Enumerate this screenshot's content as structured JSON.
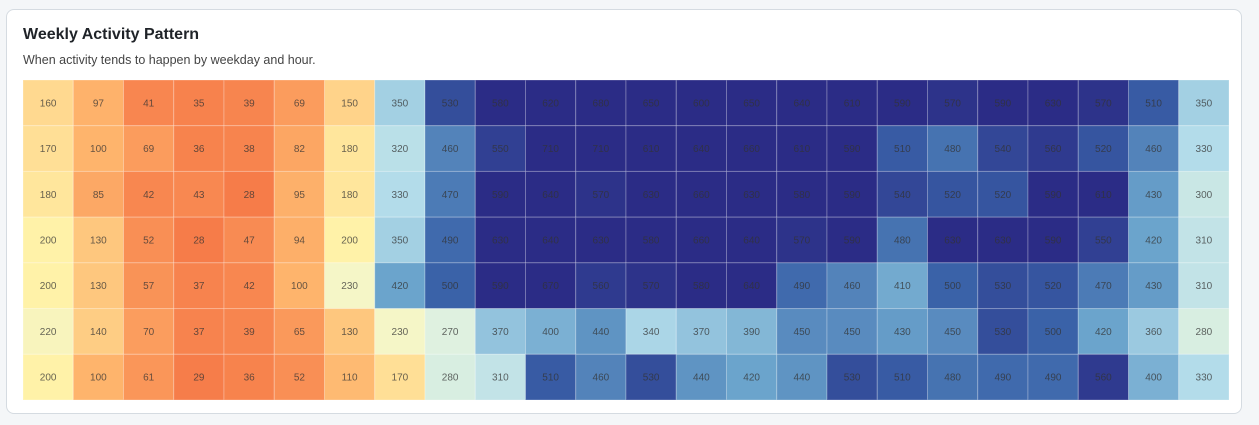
{
  "header": {
    "title": "Weekly Activity Pattern",
    "subtitle": "When activity tends to happen by weekday and hour."
  },
  "chart_data": {
    "type": "heatmap",
    "title": "Weekly Activity Pattern",
    "subtitle": "When activity tends to happen by weekday and hour.",
    "rows": 7,
    "columns": 24,
    "color_scale": {
      "low": "#f67a48",
      "mid": "#fff2a8",
      "high": "#2b2c86"
    },
    "values": [
      [
        160,
        97,
        41,
        35,
        39,
        69,
        150,
        350,
        530,
        580,
        620,
        680,
        650,
        600,
        650,
        640,
        610,
        590,
        570,
        590,
        630,
        570,
        510,
        350
      ],
      [
        170,
        100,
        69,
        36,
        38,
        82,
        180,
        320,
        460,
        550,
        710,
        710,
        610,
        640,
        660,
        610,
        590,
        510,
        480,
        540,
        560,
        520,
        460,
        330
      ],
      [
        180,
        85,
        42,
        43,
        28,
        95,
        180,
        330,
        470,
        590,
        640,
        570,
        630,
        660,
        630,
        580,
        590,
        540,
        520,
        520,
        590,
        610,
        430,
        300
      ],
      [
        200,
        130,
        52,
        28,
        47,
        94,
        200,
        350,
        490,
        630,
        640,
        630,
        580,
        660,
        640,
        570,
        590,
        480,
        630,
        630,
        590,
        550,
        420,
        310
      ],
      [
        200,
        130,
        57,
        37,
        42,
        100,
        230,
        420,
        500,
        590,
        670,
        560,
        570,
        580,
        640,
        490,
        460,
        410,
        500,
        530,
        520,
        470,
        430,
        310
      ],
      [
        220,
        140,
        70,
        37,
        39,
        65,
        130,
        230,
        270,
        370,
        400,
        440,
        340,
        370,
        390,
        450,
        450,
        430,
        450,
        530,
        500,
        420,
        360,
        280
      ],
      [
        200,
        100,
        61,
        29,
        36,
        52,
        110,
        170,
        280,
        310,
        510,
        460,
        530,
        440,
        420,
        440,
        530,
        510,
        480,
        490,
        490,
        560,
        400,
        330
      ]
    ]
  }
}
